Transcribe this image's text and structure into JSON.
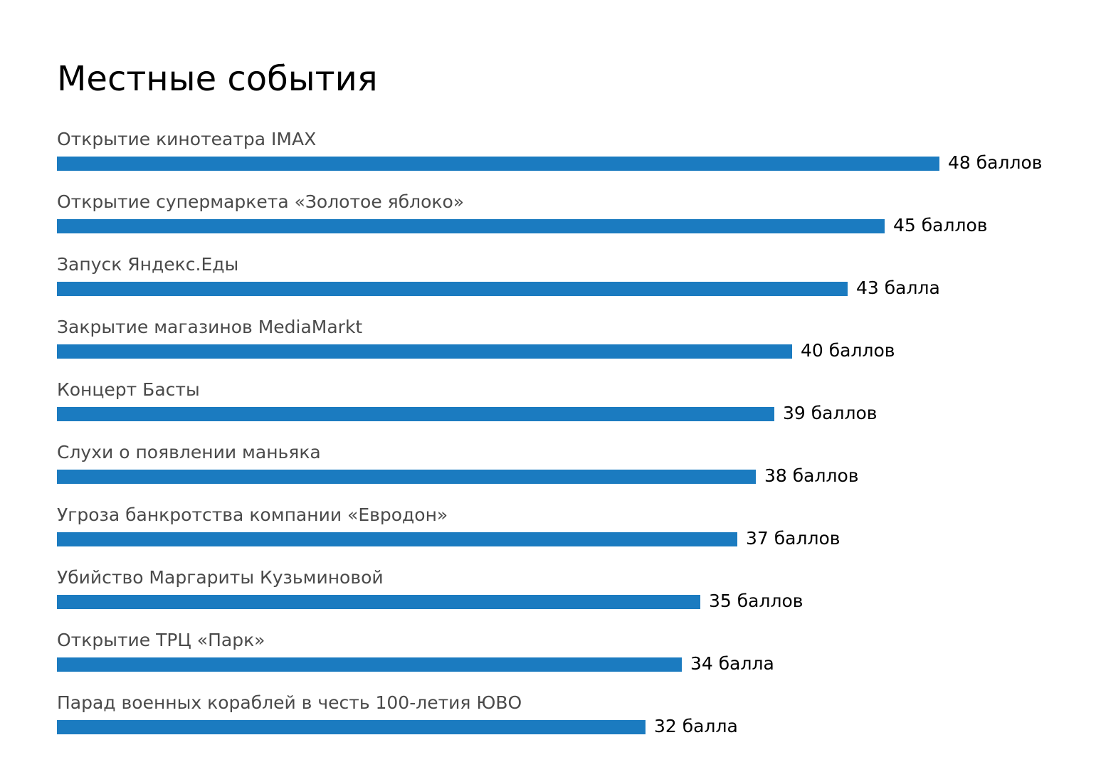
{
  "chart_data": {
    "type": "bar",
    "orientation": "horizontal",
    "title": "Местные события",
    "bar_color": "#1b7bc0",
    "xlim": [
      0,
      48
    ],
    "grid": false,
    "legend": "none",
    "categories": [
      "Открытие кинотеатра IMAX",
      "Открытие супермаркета «Золотое яблоко»",
      "Запуск Яндекс.Еды",
      "Закрытие магазинов MediaMarkt",
      "Концерт Басты",
      "Слухи о появлении маньяка",
      "Угроза банкротства компании «Евродон»",
      "Убийство Маргариты Кузьминовой",
      "Открытие ТРЦ «Парк»",
      "Парад военных кораблей в честь 100-летия ЮВО"
    ],
    "values": [
      48,
      45,
      43,
      40,
      39,
      38,
      37,
      35,
      34,
      32
    ],
    "value_labels": [
      "48 баллов",
      "45 баллов",
      "43 балла",
      "40 баллов",
      "39 баллов",
      "38 баллов",
      "37 баллов",
      "35 баллов",
      "34 балла",
      "32 балла"
    ]
  }
}
